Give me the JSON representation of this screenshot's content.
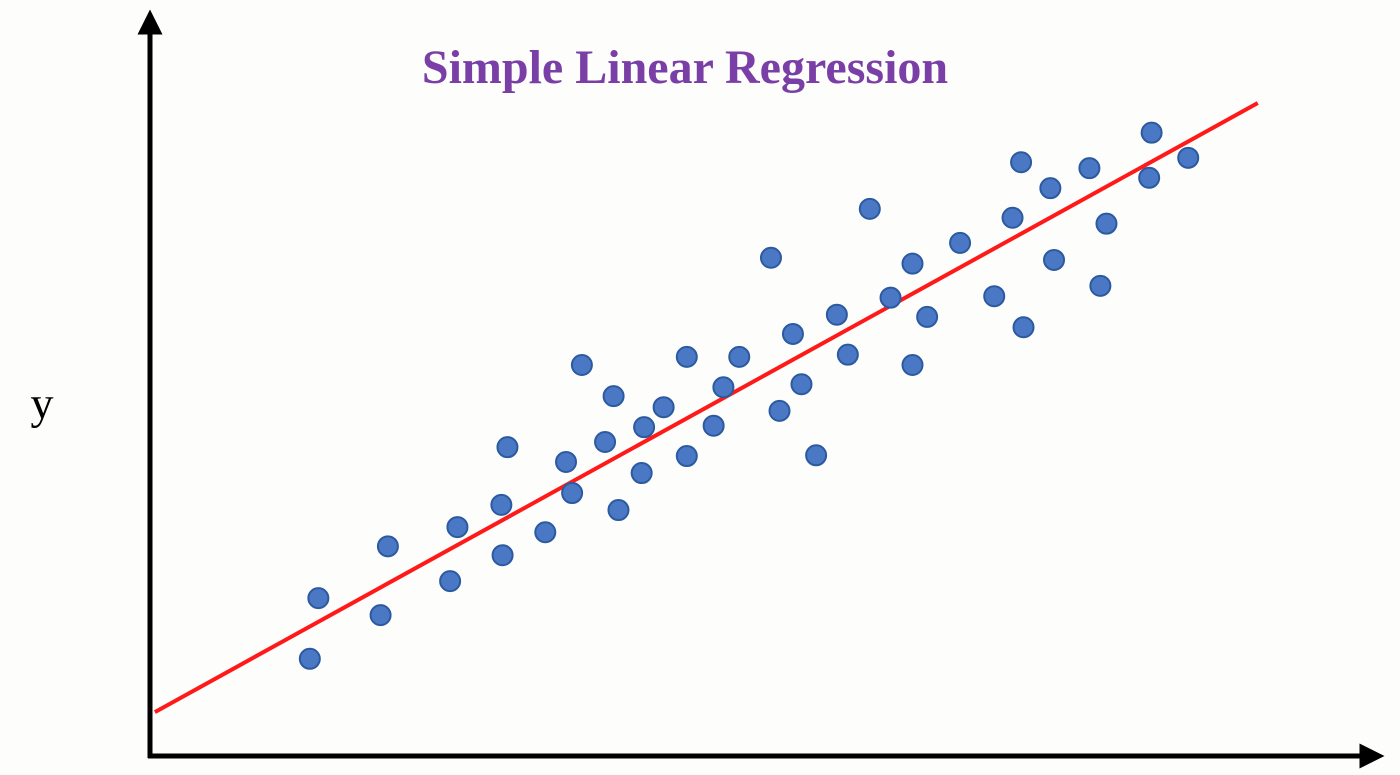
{
  "chart_data": {
    "type": "scatter",
    "title": "Simple Linear Regression",
    "y_label": "y",
    "xlim": [
      0,
      100
    ],
    "ylim": [
      0,
      100
    ],
    "color": "#4a78c4",
    "x": [
      13.1,
      13.8,
      18.9,
      19.5,
      24.6,
      25.2,
      28.8,
      28.9,
      29.3,
      32.4,
      34.1,
      34.6,
      35.4,
      37.3,
      38.0,
      38.4,
      40.3,
      40.5,
      42.1,
      44.0,
      44.0,
      46.2,
      47.0,
      48.3,
      50.9,
      51.6,
      52.7,
      53.4,
      54.6,
      56.3,
      57.2,
      59.0,
      60.7,
      62.5,
      62.5,
      63.7,
      66.4,
      69.2,
      70.7,
      71.4,
      71.6,
      73.8,
      74.1,
      77.0,
      77.9,
      78.4,
      81.9,
      82.1,
      85.1
    ],
    "values": [
      13.0,
      21.2,
      18.9,
      28.2,
      23.5,
      30.8,
      33.8,
      27.0,
      41.6,
      30.1,
      39.6,
      35.4,
      52.7,
      42.3,
      48.5,
      33.1,
      38.1,
      44.3,
      47.0,
      53.8,
      40.4,
      44.5,
      49.7,
      53.8,
      67.2,
      46.5,
      56.9,
      50.1,
      40.5,
      59.5,
      54.1,
      73.8,
      61.8,
      52.7,
      66.4,
      59.2,
      69.2,
      62.0,
      72.6,
      80.1,
      57.8,
      76.6,
      66.9,
      79.3,
      63.4,
      71.8,
      78.0,
      84.1,
      80.7
    ],
    "line": {
      "x": [
        0.4,
        90.8
      ],
      "values": [
        5.8,
        88.1
      ],
      "color": "#ff1a1a"
    }
  }
}
